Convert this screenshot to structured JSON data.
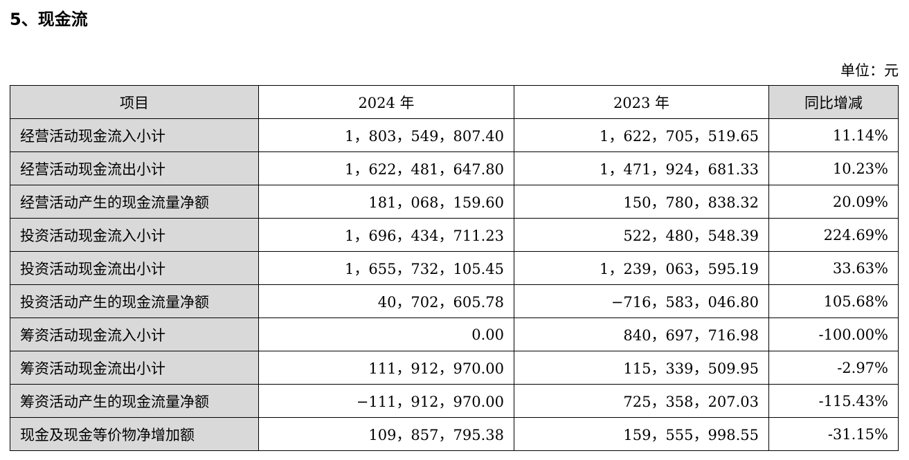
{
  "section": {
    "title": "5、现金流"
  },
  "unit": "单位：元",
  "colors": {
    "header_fill": "#d9d9d9",
    "border": "#000000"
  },
  "table": {
    "headers": [
      "项目",
      "2024 年",
      "2023 年",
      "同比增减"
    ],
    "rows": [
      {
        "item": "经营活动现金流入小计",
        "y2024": "1，803，549，807.40",
        "y2023": "1，622，705，519.65",
        "yoy": "11.14%"
      },
      {
        "item": "经营活动现金流出小计",
        "y2024": "1，622，481，647.80",
        "y2023": "1，471，924，681.33",
        "yoy": "10.23%"
      },
      {
        "item": "经营活动产生的现金流量净额",
        "y2024": "181，068，159.60",
        "y2023": "150，780，838.32",
        "yoy": "20.09%"
      },
      {
        "item": "投资活动现金流入小计",
        "y2024": "1，696，434，711.23",
        "y2023": "522，480，548.39",
        "yoy": "224.69%"
      },
      {
        "item": "投资活动现金流出小计",
        "y2024": "1，655，732，105.45",
        "y2023": "1，239，063，595.19",
        "yoy": "33.63%"
      },
      {
        "item": "投资活动产生的现金流量净额",
        "y2024": "40，702，605.78",
        "y2023": "−716，583，046.80",
        "yoy": "105.68%"
      },
      {
        "item": "筹资活动现金流入小计",
        "y2024": "0.00",
        "y2023": "840，697，716.98",
        "yoy": "-100.00%"
      },
      {
        "item": "筹资活动现金流出小计",
        "y2024": "111，912，970.00",
        "y2023": "115，339，509.95",
        "yoy": "-2.97%"
      },
      {
        "item": "筹资活动产生的现金流量净额",
        "y2024": "−111，912，970.00",
        "y2023": "725，358，207.03",
        "yoy": "-115.43%"
      },
      {
        "item": "现金及现金等价物净增加额",
        "y2024": "109，857，795.38",
        "y2023": "159，555，998.55",
        "yoy": "-31.15%"
      }
    ]
  }
}
